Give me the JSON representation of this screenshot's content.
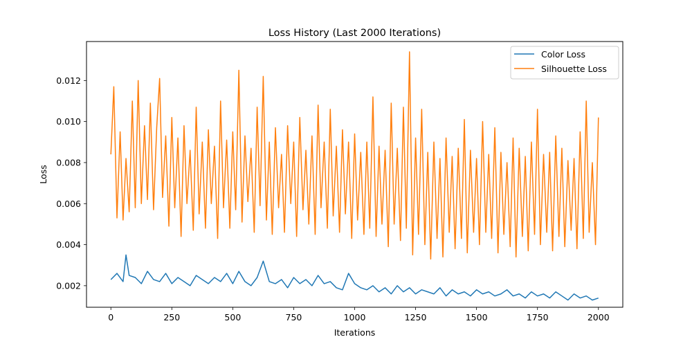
{
  "chart_data": {
    "type": "line",
    "title": "Loss History (Last 2000 Iterations)",
    "xlabel": "Iterations",
    "ylabel": "Loss",
    "xlim": [
      -100,
      2100
    ],
    "ylim": [
      0.00095,
      0.0139
    ],
    "xticks": [
      0,
      250,
      500,
      750,
      1000,
      1250,
      1500,
      1750,
      2000
    ],
    "xtick_labels": [
      "0",
      "250",
      "500",
      "750",
      "1000",
      "1250",
      "1500",
      "1750",
      "2000"
    ],
    "yticks": [
      0.002,
      0.004,
      0.006,
      0.008,
      0.01,
      0.012
    ],
    "ytick_labels": [
      "0.002",
      "0.004",
      "0.006",
      "0.008",
      "0.010",
      "0.012"
    ],
    "grid": false,
    "legend_position": "top-right",
    "series": [
      {
        "name": "Color Loss",
        "color": "#1f77b4",
        "x": [
          0,
          25,
          50,
          62,
          75,
          100,
          125,
          150,
          175,
          200,
          225,
          250,
          275,
          300,
          325,
          350,
          375,
          400,
          425,
          450,
          475,
          500,
          525,
          550,
          575,
          600,
          625,
          650,
          675,
          700,
          725,
          750,
          775,
          800,
          825,
          850,
          875,
          900,
          925,
          950,
          975,
          1000,
          1025,
          1050,
          1075,
          1100,
          1125,
          1150,
          1175,
          1200,
          1225,
          1250,
          1275,
          1300,
          1325,
          1350,
          1375,
          1400,
          1425,
          1450,
          1475,
          1500,
          1525,
          1550,
          1575,
          1600,
          1625,
          1650,
          1675,
          1700,
          1725,
          1750,
          1775,
          1800,
          1825,
          1850,
          1875,
          1900,
          1925,
          1950,
          1975,
          2000
        ],
        "values": [
          0.0023,
          0.0026,
          0.0022,
          0.0035,
          0.0025,
          0.0024,
          0.0021,
          0.0027,
          0.0023,
          0.0022,
          0.0026,
          0.0021,
          0.0024,
          0.0022,
          0.002,
          0.0025,
          0.0023,
          0.0021,
          0.0024,
          0.0022,
          0.0026,
          0.0021,
          0.0027,
          0.0022,
          0.002,
          0.0024,
          0.0032,
          0.0022,
          0.0021,
          0.0023,
          0.0019,
          0.0024,
          0.0021,
          0.0023,
          0.002,
          0.0025,
          0.0021,
          0.0022,
          0.0019,
          0.0018,
          0.0026,
          0.0021,
          0.0019,
          0.0018,
          0.002,
          0.0017,
          0.0019,
          0.0016,
          0.002,
          0.0017,
          0.0019,
          0.0016,
          0.0018,
          0.0017,
          0.0016,
          0.0019,
          0.0015,
          0.0018,
          0.0016,
          0.0017,
          0.0015,
          0.0018,
          0.0016,
          0.0017,
          0.0015,
          0.0016,
          0.0018,
          0.0015,
          0.0016,
          0.0014,
          0.0017,
          0.0015,
          0.0016,
          0.0014,
          0.0017,
          0.0015,
          0.0013,
          0.0016,
          0.0014,
          0.0015,
          0.0013,
          0.0014
        ]
      },
      {
        "name": "Silhouette Loss",
        "color": "#ff7f0e",
        "x": [
          0,
          12,
          25,
          38,
          50,
          62,
          75,
          88,
          100,
          112,
          125,
          138,
          150,
          162,
          175,
          188,
          200,
          212,
          225,
          238,
          250,
          262,
          275,
          288,
          300,
          312,
          325,
          338,
          350,
          362,
          375,
          388,
          400,
          412,
          425,
          438,
          450,
          462,
          475,
          488,
          500,
          512,
          525,
          538,
          550,
          562,
          575,
          588,
          600,
          612,
          625,
          638,
          650,
          662,
          675,
          688,
          700,
          712,
          725,
          738,
          750,
          762,
          775,
          788,
          800,
          812,
          825,
          838,
          850,
          862,
          875,
          888,
          900,
          912,
          925,
          938,
          950,
          962,
          975,
          988,
          1000,
          1012,
          1025,
          1038,
          1050,
          1062,
          1075,
          1088,
          1100,
          1112,
          1125,
          1138,
          1150,
          1162,
          1175,
          1188,
          1200,
          1212,
          1225,
          1238,
          1250,
          1262,
          1275,
          1288,
          1300,
          1312,
          1325,
          1338,
          1350,
          1362,
          1375,
          1388,
          1400,
          1412,
          1425,
          1438,
          1450,
          1462,
          1475,
          1488,
          1500,
          1512,
          1525,
          1538,
          1550,
          1562,
          1575,
          1588,
          1600,
          1612,
          1625,
          1638,
          1650,
          1662,
          1675,
          1688,
          1700,
          1712,
          1725,
          1738,
          1750,
          1762,
          1775,
          1788,
          1800,
          1812,
          1825,
          1838,
          1850,
          1862,
          1875,
          1888,
          1900,
          1912,
          1925,
          1938,
          1950,
          1962,
          1975,
          1988,
          2000
        ],
        "values": [
          0.0084,
          0.0117,
          0.0053,
          0.0095,
          0.0052,
          0.0082,
          0.0056,
          0.011,
          0.0058,
          0.012,
          0.006,
          0.0098,
          0.0062,
          0.0109,
          0.0057,
          0.0097,
          0.0121,
          0.0063,
          0.0093,
          0.0049,
          0.0102,
          0.0058,
          0.0092,
          0.0044,
          0.0098,
          0.006,
          0.0086,
          0.0047,
          0.0107,
          0.0055,
          0.009,
          0.0048,
          0.0096,
          0.006,
          0.0088,
          0.0043,
          0.011,
          0.0058,
          0.0091,
          0.0048,
          0.0095,
          0.0057,
          0.0125,
          0.0051,
          0.0093,
          0.0061,
          0.0087,
          0.0046,
          0.0107,
          0.0059,
          0.0122,
          0.0052,
          0.009,
          0.0045,
          0.0097,
          0.0058,
          0.0084,
          0.0046,
          0.0098,
          0.006,
          0.009,
          0.0044,
          0.0102,
          0.0057,
          0.0086,
          0.005,
          0.0093,
          0.0045,
          0.0108,
          0.0058,
          0.009,
          0.0048,
          0.0106,
          0.0054,
          0.0088,
          0.0046,
          0.0096,
          0.0055,
          0.009,
          0.0043,
          0.0094,
          0.0052,
          0.0085,
          0.0045,
          0.009,
          0.0048,
          0.0112,
          0.0044,
          0.0088,
          0.005,
          0.0086,
          0.0039,
          0.0109,
          0.005,
          0.0087,
          0.0042,
          0.0107,
          0.0048,
          0.0134,
          0.0035,
          0.0092,
          0.0045,
          0.0106,
          0.004,
          0.0085,
          0.0033,
          0.009,
          0.0043,
          0.0082,
          0.0034,
          0.0092,
          0.0046,
          0.0083,
          0.0038,
          0.0087,
          0.0043,
          0.0101,
          0.0036,
          0.0086,
          0.0046,
          0.0082,
          0.004,
          0.01,
          0.0046,
          0.0084,
          0.0043,
          0.0097,
          0.0036,
          0.0085,
          0.0045,
          0.008,
          0.0039,
          0.0092,
          0.0034,
          0.0087,
          0.0044,
          0.0083,
          0.0037,
          0.009,
          0.0045,
          0.0106,
          0.004,
          0.0084,
          0.0046,
          0.0085,
          0.0037,
          0.0093,
          0.0044,
          0.0087,
          0.0039,
          0.0081,
          0.0047,
          0.0082,
          0.0038,
          0.0095,
          0.0043,
          0.011,
          0.0046,
          0.008,
          0.004,
          0.0102
        ]
      }
    ]
  }
}
